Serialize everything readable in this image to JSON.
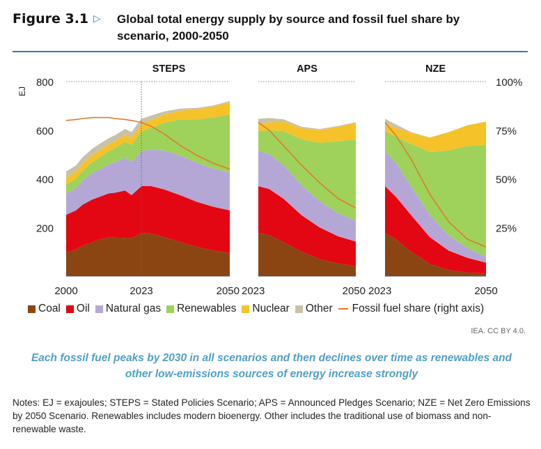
{
  "header": {
    "figure_label": "Figure 3.1",
    "title": "Global total energy supply by source and fossil fuel share by scenario, 2000-2050"
  },
  "legend": [
    {
      "label": "Coal",
      "color": "#8b4513"
    },
    {
      "label": "Oil",
      "color": "#e30613"
    },
    {
      "label": "Natural gas",
      "color": "#b4a7d6"
    },
    {
      "label": "Renewables",
      "color": "#9fd25a"
    },
    {
      "label": "Nuclear",
      "color": "#f5c22a"
    },
    {
      "label": "Other",
      "color": "#c9c2a6"
    },
    {
      "label": "Fossil fuel share (right axis)",
      "color": "#e07b2a",
      "type": "line"
    }
  ],
  "source": "IEA. CC BY 4.0.",
  "takeaway": "Each fossil fuel peaks by 2030 in all scenarios and then declines over time as renewables and other low-emissions sources of energy increase strongly",
  "notes": "Notes: EJ = exajoules; STEPS = Stated Policies Scenario; APS = Announced Pledges Scenario; NZE = Net Zero Emissions by 2050 Scenario. Renewables includes modern bioenergy. Other includes the traditional use of biomass and non-renewable waste.",
  "chart_data": {
    "type": "area",
    "stacked": true,
    "ylabel": "EJ",
    "ylim": [
      0,
      800
    ],
    "y_ticks": [
      200,
      400,
      600,
      800
    ],
    "y2lim": [
      0,
      100
    ],
    "y2_ticks": [
      "25%",
      "50%",
      "75%",
      "100%"
    ],
    "gridline_at": 800,
    "series_order": [
      "Coal",
      "Oil",
      "Natural gas",
      "Renewables",
      "Nuclear",
      "Other"
    ],
    "line_series": "Fossil fuel share (right axis)",
    "panels": [
      {
        "name": "STEPS",
        "x_ticks": [
          "2000",
          "2023",
          "2050"
        ],
        "x": [
          2000,
          2003,
          2005,
          2008,
          2010,
          2013,
          2015,
          2018,
          2020,
          2023,
          2026,
          2030,
          2035,
          2040,
          2045,
          2050
        ],
        "series": [
          {
            "name": "Coal",
            "values": [
              97,
              110,
              125,
              140,
              150,
              160,
              158,
              157,
              155,
              178,
              175,
              160,
              140,
              120,
              105,
              95
            ]
          },
          {
            "name": "Oil",
            "values": [
              155,
              160,
              168,
              175,
              175,
              180,
              185,
              195,
              178,
              192,
              195,
              196,
              192,
              185,
              180,
              175
            ]
          },
          {
            "name": "Natural gas",
            "values": [
              88,
              93,
              100,
              110,
              113,
              120,
              126,
              135,
              137,
              145,
              150,
              160,
              162,
              160,
              157,
              155
            ]
          },
          {
            "name": "Renewables",
            "values": [
              36,
              38,
              40,
              44,
              48,
              54,
              58,
              65,
              70,
              80,
              90,
              115,
              150,
              180,
              210,
              240
            ]
          },
          {
            "name": "Nuclear",
            "values": [
              29,
              29,
              30,
              30,
              31,
              28,
              28,
              29,
              29,
              30,
              32,
              34,
              37,
              41,
              45,
              50
            ]
          },
          {
            "name": "Other",
            "values": [
              25,
              25,
              25,
              25,
              25,
              25,
              25,
              24,
              24,
              22,
              18,
              12,
              8,
              6,
              5,
              5
            ]
          }
        ],
        "fossil_share_pct": [
          80,
          80.5,
          81,
          81.5,
          81.5,
          81.5,
          81,
          80.5,
          80,
          79,
          77,
          73,
          67,
          62,
          58,
          55
        ]
      },
      {
        "name": "APS",
        "x_ticks": [
          "2023",
          "2050"
        ],
        "x": [
          2023,
          2026,
          2030,
          2035,
          2040,
          2045,
          2050
        ],
        "series": [
          {
            "name": "Coal",
            "values": [
              178,
              168,
              140,
              100,
              70,
              52,
              42
            ]
          },
          {
            "name": "Oil",
            "values": [
              192,
              190,
              178,
              150,
              130,
              112,
              100
            ]
          },
          {
            "name": "Natural gas",
            "values": [
              145,
              144,
              138,
              122,
              108,
              95,
              85
            ]
          },
          {
            "name": "Renewables",
            "values": [
              80,
              98,
              140,
              190,
              240,
              295,
              335
            ]
          },
          {
            "name": "Nuclear",
            "values": [
              30,
              33,
              38,
              46,
              53,
              60,
              68
            ]
          },
          {
            "name": "Other",
            "values": [
              22,
              17,
              11,
              6,
              4,
              3,
              3
            ]
          }
        ],
        "fossil_share_pct": [
          79,
          75,
          67,
          57,
          48,
          40,
          35
        ]
      },
      {
        "name": "NZE",
        "x_ticks": [
          "2023",
          "2050"
        ],
        "x": [
          2023,
          2026,
          2030,
          2035,
          2040,
          2045,
          2050
        ],
        "series": [
          {
            "name": "Coal",
            "values": [
              178,
              150,
              100,
              50,
              25,
              15,
              10
            ]
          },
          {
            "name": "Oil",
            "values": [
              192,
              175,
              150,
              110,
              80,
              60,
              45
            ]
          },
          {
            "name": "Natural gas",
            "values": [
              145,
              138,
              118,
              90,
              62,
              40,
              25
            ]
          },
          {
            "name": "Renewables",
            "values": [
              80,
              110,
              175,
              260,
              350,
              420,
              460
            ]
          },
          {
            "name": "Nuclear",
            "values": [
              30,
              35,
              45,
              60,
              75,
              85,
              95
            ]
          },
          {
            "name": "Other",
            "values": [
              22,
              15,
              4,
              0,
              0,
              0,
              0
            ]
          }
        ],
        "fossil_share_pct": [
          79,
          72,
          60,
          42,
          28,
          19,
          15
        ]
      }
    ],
    "marker_line": {
      "panel": "STEPS",
      "x": 2023,
      "style": "dotted"
    }
  }
}
